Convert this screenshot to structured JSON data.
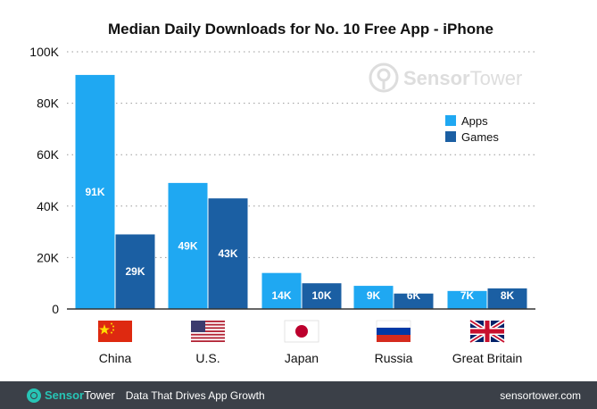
{
  "chart_data": {
    "type": "bar",
    "title": "Median Daily Downloads for No. 10 Free App - iPhone",
    "categories": [
      "China",
      "U.S.",
      "Japan",
      "Russia",
      "Great Britain"
    ],
    "series": [
      {
        "name": "Apps",
        "values": [
          91000,
          49000,
          14000,
          9000,
          7000
        ],
        "labels": [
          "91K",
          "49K",
          "14K",
          "9K",
          "7K"
        ],
        "color": "#1fa8f2"
      },
      {
        "name": "Games",
        "values": [
          29000,
          43000,
          10000,
          6000,
          8000
        ],
        "labels": [
          "29K",
          "43K",
          "10K",
          "6K",
          "8K"
        ],
        "color": "#1b5fa3"
      }
    ],
    "ylim": [
      0,
      100000
    ],
    "yticks": [
      0,
      20000,
      40000,
      60000,
      80000,
      100000
    ],
    "ytick_labels": [
      "0",
      "20K",
      "40K",
      "60K",
      "80K",
      "100K"
    ],
    "grid": true,
    "legend": "top-right",
    "flag_icons": [
      "china-flag-icon",
      "us-flag-icon",
      "japan-flag-icon",
      "russia-flag-icon",
      "uk-flag-icon"
    ]
  },
  "watermark": {
    "brand_a": "Sensor",
    "brand_b": "Tower"
  },
  "footer": {
    "brand_a": "Sensor",
    "brand_b": "Tower",
    "tagline": "Data That Drives App Growth",
    "url": "sensortower.com"
  }
}
